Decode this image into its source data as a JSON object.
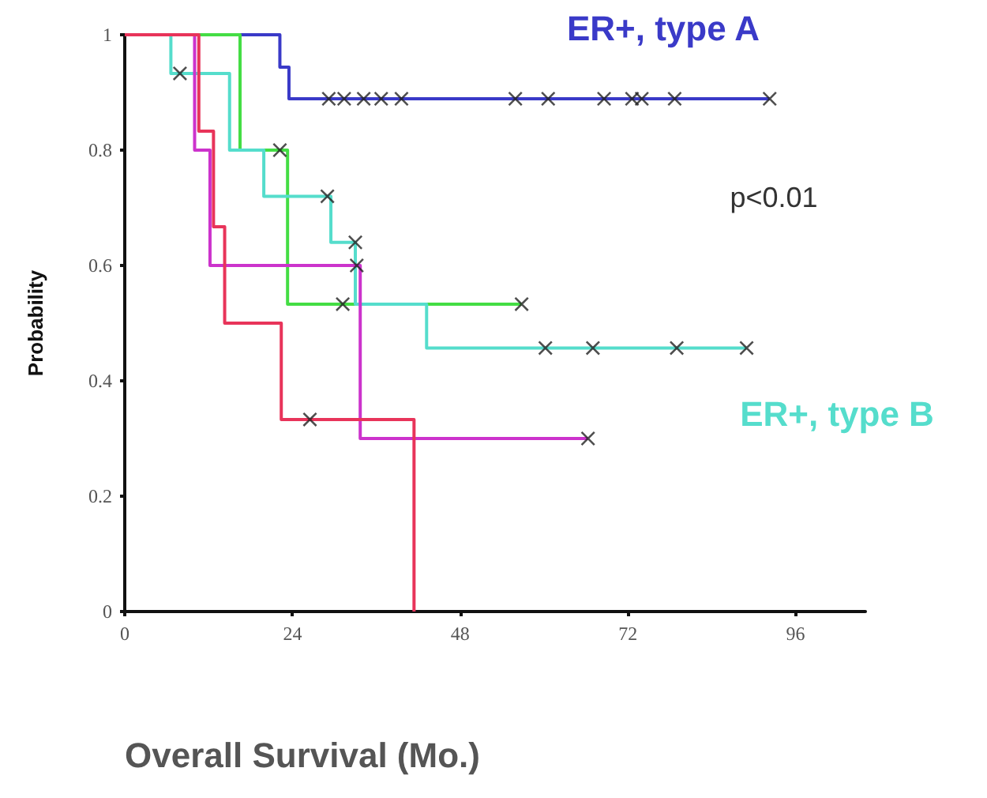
{
  "chart_data": {
    "type": "step",
    "xlabel": "Overall Survival (Mo.)",
    "ylabel": "Probability",
    "xlim": [
      0,
      106
    ],
    "xticks": [
      0,
      24,
      48,
      72,
      96
    ],
    "ylim": [
      0,
      1
    ],
    "yticks": [
      0,
      0.2,
      0.4,
      0.6,
      0.8,
      1
    ],
    "grid": false,
    "legend": false,
    "marker": "none",
    "line_style": "solid",
    "annotations": [
      "p<0.01"
    ],
    "series": [
      {
        "name": "ER+, type A",
        "color": "#3a3ac8",
        "x": [
          0,
          22.2,
          23.5,
          92.3
        ],
        "values": [
          1,
          0.944,
          0.889,
          0.889
        ]
      },
      {
        "color": "#44dd44",
        "x": [
          0,
          16.5,
          23.3,
          56.8
        ],
        "values": [
          1,
          0.8,
          0.533,
          0.533
        ]
      },
      {
        "name": "ER+, type B",
        "color": "#55ddcc",
        "x": [
          0,
          6.6,
          15,
          19.9,
          29.5,
          33,
          43.2,
          89
        ],
        "values": [
          1,
          0.933,
          0.8,
          0.72,
          0.64,
          0.533,
          0.457,
          0.457
        ]
      },
      {
        "color": "#cc33cc",
        "x": [
          0,
          10,
          12.2,
          33.7,
          66.3
        ],
        "values": [
          1,
          0.8,
          0.6,
          0.3,
          0.3
        ]
      },
      {
        "color": "#e8345a",
        "x": [
          0,
          10.6,
          12.7,
          14.3,
          22.4,
          41.4
        ],
        "values": [
          1,
          0.833,
          0.667,
          0.5,
          0.333,
          0
        ]
      },
      {
        "type": "scatter",
        "color": "#222222",
        "marker": "cross",
        "x": [
          29.2,
          31.4,
          34.2,
          36.7,
          39.6,
          55.9,
          60.6,
          68.6,
          72.6,
          74,
          78.7,
          92.3,
          22.2,
          31.2,
          56.8,
          7.9,
          29,
          33,
          60.2,
          67,
          79,
          89,
          33.2,
          66.3,
          26.5
        ],
        "values": [
          0.889,
          0.889,
          0.889,
          0.889,
          0.889,
          0.889,
          0.889,
          0.889,
          0.889,
          0.889,
          0.889,
          0.889,
          0.8,
          0.533,
          0.533,
          0.933,
          0.72,
          0.64,
          0.457,
          0.457,
          0.457,
          0.457,
          0.6,
          0.3,
          0.333
        ]
      }
    ]
  }
}
